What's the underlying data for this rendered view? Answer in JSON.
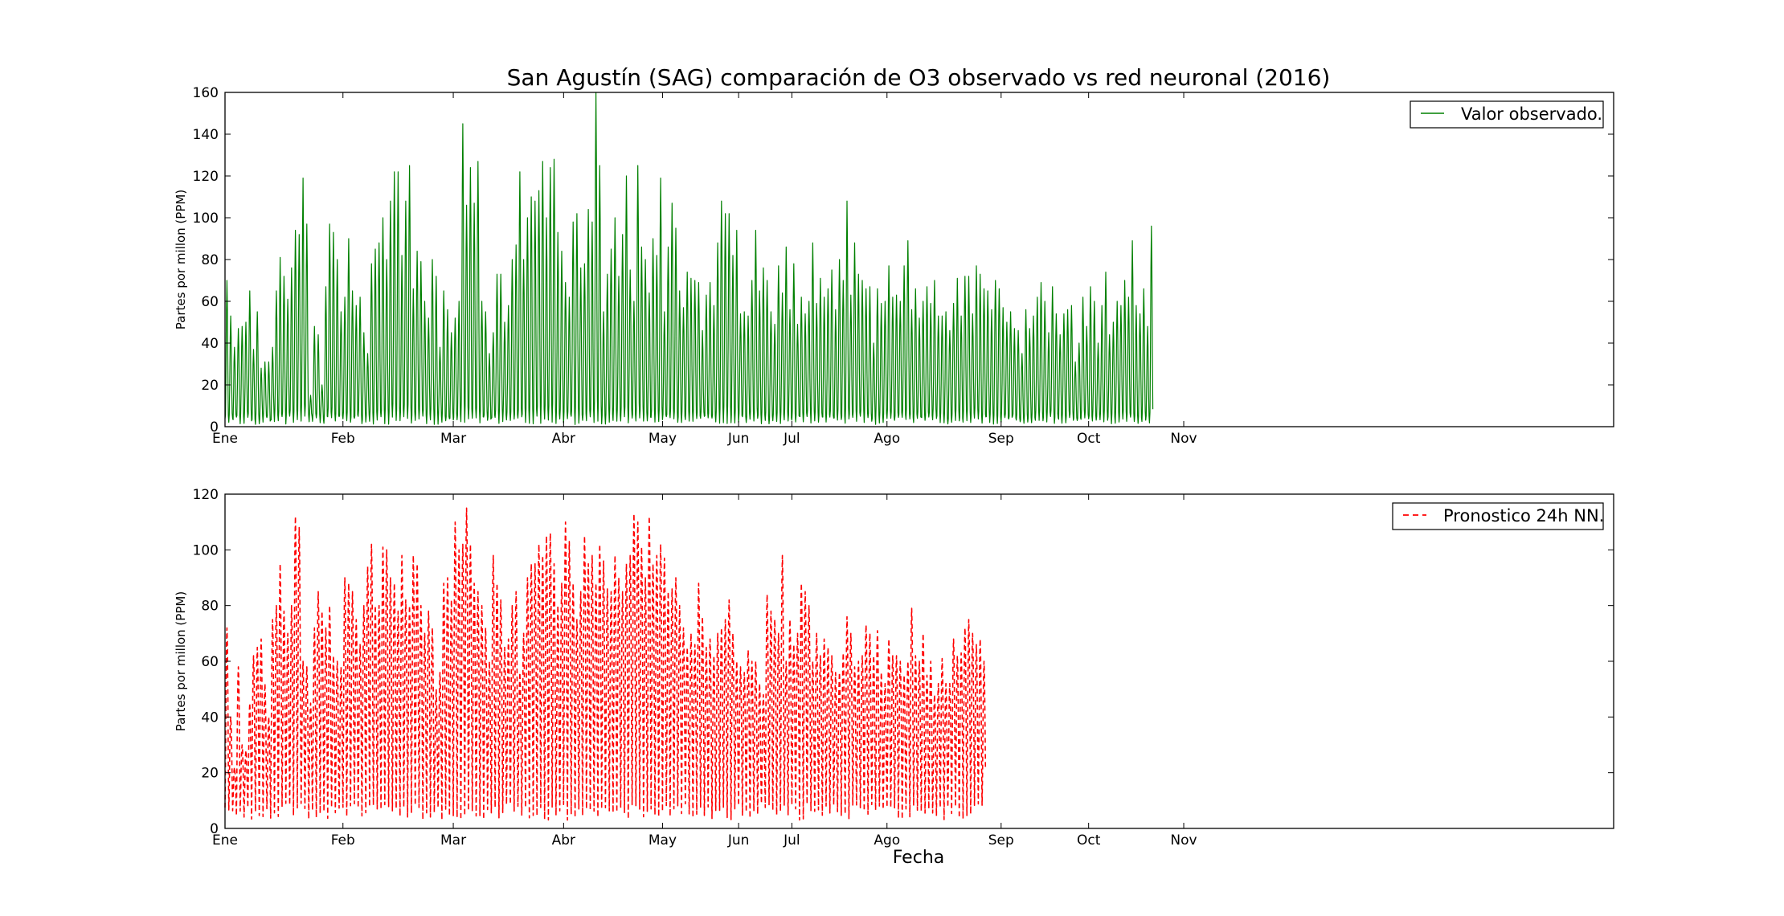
{
  "title": "San Agustín (SAG) comparación de O3 observado vs red neuronal (2016)",
  "xlabel": "Fecha",
  "colors": {
    "observed": "#008000",
    "forecast": "#ff0000",
    "axes": "#000000",
    "background": "#ffffff"
  },
  "chart_data": [
    {
      "type": "line",
      "title": "San Agustín (SAG) comparación de O3 observado vs red neuronal (2016)",
      "xlabel": "",
      "ylabel": "Partes por millon (PPM)",
      "xlim": [
        0,
        365
      ],
      "ylim": [
        0,
        160
      ],
      "yticks": [
        0,
        20,
        40,
        60,
        80,
        100,
        120,
        140,
        160
      ],
      "xticks": [
        {
          "label": "Ene",
          "day": 0
        },
        {
          "label": "Feb",
          "day": 31
        },
        {
          "label": "Mar",
          "day": 60
        },
        {
          "label": "Abr",
          "day": 89
        },
        {
          "label": "May",
          "day": 115
        },
        {
          "label": "Jun",
          "day": 135
        },
        {
          "label": "Jul",
          "day": 149
        },
        {
          "label": "Ago",
          "day": 174
        },
        {
          "label": "Sep",
          "day": 204
        },
        {
          "label": "Oct",
          "day": 227
        },
        {
          "label": "Nov",
          "day": 252
        }
      ],
      "grid": false,
      "legend_position": "top-right",
      "series": [
        {
          "name": "Valor observado.",
          "style": "solid",
          "note": "hourly ozone series; values below are approximate daily peaks, series ends near day 334",
          "daily_peak": [
            70,
            53,
            38,
            47,
            48,
            50,
            65,
            37,
            55,
            28,
            31,
            31,
            38,
            65,
            81,
            72,
            61,
            76,
            94,
            92,
            119,
            97,
            15,
            48,
            44,
            20,
            67,
            97,
            93,
            80,
            55,
            62,
            90,
            65,
            58,
            62,
            45,
            35,
            78,
            85,
            88,
            100,
            80,
            108,
            122,
            122,
            82,
            108,
            125,
            66,
            84,
            79,
            60,
            52,
            80,
            72,
            38,
            65,
            56,
            45,
            52,
            60,
            145,
            106,
            124,
            107,
            127,
            60,
            55,
            35,
            45,
            73,
            73,
            50,
            58,
            80,
            87,
            122,
            80,
            100,
            110,
            108,
            113,
            127,
            100,
            124,
            128,
            93,
            84,
            69,
            62,
            98,
            102,
            76,
            78,
            104,
            98,
            160,
            125,
            55,
            73,
            85,
            100,
            72,
            92,
            120,
            75,
            60,
            125,
            86,
            80,
            64,
            90,
            82,
            119,
            55,
            86,
            107,
            95,
            65,
            57,
            74,
            71,
            70,
            69,
            46,
            63,
            69,
            58,
            88,
            108,
            102,
            102,
            82,
            94,
            54,
            55,
            53,
            70,
            94,
            65,
            76,
            70,
            55,
            49,
            77,
            64,
            86,
            56,
            78,
            49,
            62,
            54,
            60,
            88,
            59,
            71,
            62,
            66,
            75,
            56,
            80,
            70,
            108,
            63,
            88,
            73,
            70,
            66,
            67,
            40,
            66,
            59,
            60,
            77,
            62,
            63,
            60,
            77,
            89,
            56,
            66,
            52,
            60,
            67,
            59,
            70,
            53,
            53,
            55,
            46,
            59,
            71,
            53,
            72,
            72,
            54,
            77,
            73,
            66,
            65,
            56,
            70,
            66,
            57,
            50,
            55,
            47,
            46,
            35,
            56,
            47,
            53,
            62,
            69,
            60,
            45,
            67,
            54,
            44,
            54,
            56,
            58,
            31,
            40,
            62,
            48,
            67,
            60,
            40,
            58,
            74,
            44,
            50,
            60,
            58,
            70,
            62,
            89,
            58,
            54,
            66,
            48,
            96
          ]
        }
      ]
    },
    {
      "type": "line",
      "title": "",
      "xlabel": "Fecha",
      "ylabel": "Partes por millon (PPM)",
      "xlim": [
        0,
        365
      ],
      "ylim": [
        0,
        120
      ],
      "yticks": [
        0,
        20,
        40,
        60,
        80,
        100,
        120
      ],
      "xticks": [
        {
          "label": "Ene",
          "day": 0
        },
        {
          "label": "Feb",
          "day": 31
        },
        {
          "label": "Mar",
          "day": 60
        },
        {
          "label": "Abr",
          "day": 89
        },
        {
          "label": "May",
          "day": 115
        },
        {
          "label": "Jun",
          "day": 135
        },
        {
          "label": "Jul",
          "day": 149
        },
        {
          "label": "Ago",
          "day": 174
        },
        {
          "label": "Sep",
          "day": 204
        },
        {
          "label": "Oct",
          "day": 227
        },
        {
          "label": "Nov",
          "day": 252
        }
      ],
      "grid": false,
      "legend_position": "top-right",
      "series": [
        {
          "name": "Pronostico 24h NN.",
          "style": "dashed",
          "note": "hourly 24h neural-network forecast; values below are approximate daily peaks, series ends near day 334",
          "daily_peak": [
            72,
            40,
            22,
            58,
            30,
            28,
            45,
            62,
            65,
            68,
            52,
            40,
            75,
            80,
            95,
            78,
            70,
            80,
            112,
            108,
            60,
            58,
            45,
            72,
            85,
            78,
            72,
            80,
            62,
            60,
            58,
            90,
            88,
            85,
            75,
            66,
            80,
            94,
            102,
            80,
            80,
            101,
            100,
            90,
            88,
            78,
            98,
            82,
            80,
            98,
            95,
            80,
            70,
            78,
            72,
            50,
            56,
            88,
            90,
            82,
            110,
            100,
            102,
            115,
            102,
            88,
            85,
            80,
            72,
            60,
            98,
            88,
            82,
            65,
            68,
            80,
            85,
            56,
            70,
            90,
            95,
            95,
            102,
            98,
            105,
            106,
            95,
            80,
            88,
            110,
            103,
            88,
            75,
            85,
            105,
            95,
            98,
            88,
            102,
            96,
            86,
            85,
            98,
            90,
            85,
            95,
            98,
            113,
            110,
            101,
            90,
            112,
            95,
            98,
            102,
            97,
            85,
            86,
            90,
            80,
            72,
            65,
            70,
            66,
            88,
            76,
            65,
            68,
            62,
            70,
            72,
            75,
            82,
            70,
            60,
            58,
            56,
            64,
            60,
            60,
            52,
            48,
            84,
            78,
            75,
            70,
            98,
            60,
            75,
            66,
            70,
            88,
            85,
            80,
            60,
            70,
            62,
            68,
            65,
            62,
            56,
            56,
            63,
            76,
            70,
            58,
            60,
            62,
            73,
            70,
            62,
            71,
            56,
            52,
            68,
            62,
            62,
            60,
            55,
            60,
            79,
            62,
            60,
            70,
            55,
            60,
            48,
            52,
            61,
            52,
            52,
            68,
            62,
            63,
            72,
            75,
            70,
            66,
            68,
            60
          ]
        }
      ]
    }
  ],
  "legend": [
    {
      "label": "Valor observado."
    },
    {
      "label": "Pronostico 24h NN."
    }
  ]
}
